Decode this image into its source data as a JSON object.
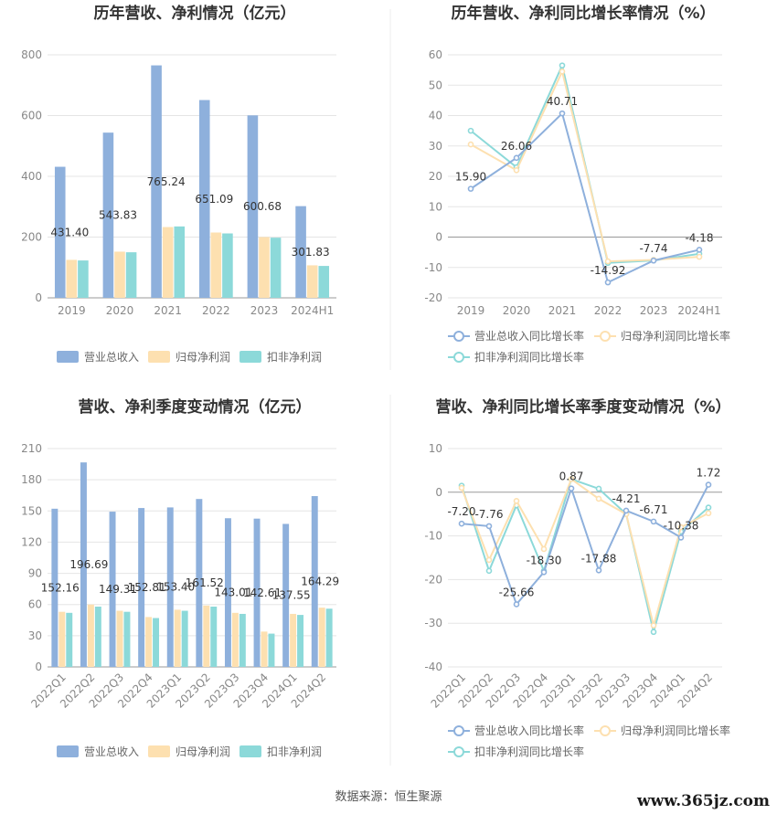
{
  "colors": {
    "revenue": "#8eb0dc",
    "parent": "#fde0b0",
    "deducted": "#8cd9d9"
  },
  "chart_data": [
    {
      "type": "bar",
      "title": "历年营收、净利情况（亿元）",
      "categories": [
        "2019",
        "2020",
        "2021",
        "2022",
        "2023",
        "2024H1"
      ],
      "ylim": [
        0,
        800
      ],
      "yticks": [
        "0",
        "200",
        "400",
        "600",
        "800"
      ],
      "series": [
        {
          "name": "营业总收入",
          "values": [
            431.4,
            543.83,
            765.24,
            651.09,
            600.68,
            301.83
          ],
          "labels": [
            "431.40",
            "543.83",
            "765.24",
            "651.09",
            "600.68",
            "301.83"
          ]
        },
        {
          "name": "归母净利润",
          "values": [
            125,
            152,
            233,
            215,
            200,
            107
          ]
        },
        {
          "name": "扣非净利润",
          "values": [
            123,
            150,
            235,
            212,
            198,
            105
          ]
        }
      ]
    },
    {
      "type": "line",
      "title": "历年营收、净利同比增长率情况（%）",
      "categories": [
        "2019",
        "2020",
        "2021",
        "2022",
        "2023",
        "2024H1"
      ],
      "ylim": [
        -20,
        60
      ],
      "yticks": [
        "-20",
        "-10",
        "0",
        "10",
        "20",
        "30",
        "40",
        "50",
        "60"
      ],
      "series": [
        {
          "name": "营业总收入同比增长率",
          "values": [
            15.9,
            26.06,
            40.71,
            -14.92,
            -7.74,
            -4.18
          ],
          "labels": [
            "15.90",
            "26.06",
            "40.71",
            "-14.92",
            "-7.74",
            "-4.18"
          ]
        },
        {
          "name": "归母净利润同比增长率",
          "values": [
            30.5,
            22.0,
            54.5,
            -8.0,
            -7.5,
            -6.5
          ]
        },
        {
          "name": "扣非净利润同比增长率",
          "values": [
            35.0,
            23.0,
            56.5,
            -8.5,
            -7.7,
            -5.5
          ]
        }
      ]
    },
    {
      "type": "bar",
      "title": "营收、净利季度变动情况（亿元）",
      "categories": [
        "2022Q1",
        "2022Q2",
        "2022Q3",
        "2022Q4",
        "2023Q1",
        "2023Q2",
        "2023Q3",
        "2023Q4",
        "2024Q1",
        "2024Q2"
      ],
      "ylim": [
        0,
        210
      ],
      "yticks": [
        "0",
        "30",
        "60",
        "90",
        "120",
        "150",
        "180",
        "210"
      ],
      "series": [
        {
          "name": "营业总收入",
          "values": [
            152.16,
            196.69,
            149.31,
            152.81,
            153.4,
            161.52,
            143.01,
            142.61,
            137.55,
            164.29
          ],
          "labels": [
            "152.16",
            "196.69",
            "149.31",
            "152.81",
            "153.40",
            "161.52",
            "143.01",
            "142.61",
            "137.55",
            "164.29"
          ]
        },
        {
          "name": "归母净利润",
          "values": [
            53,
            60,
            54,
            48,
            55,
            59,
            52,
            34,
            51,
            57
          ]
        },
        {
          "name": "扣非净利润",
          "values": [
            52,
            58,
            53,
            47,
            54,
            58,
            51,
            32,
            50,
            56
          ]
        }
      ]
    },
    {
      "type": "line",
      "title": "营收、净利同比增长率季度变动情况（%）",
      "categories": [
        "2022Q1",
        "2022Q2",
        "2022Q3",
        "2022Q4",
        "2023Q1",
        "2023Q2",
        "2023Q3",
        "2023Q4",
        "2024Q1",
        "2024Q2"
      ],
      "ylim": [
        -40,
        10
      ],
      "yticks": [
        "-40",
        "-30",
        "-20",
        "-10",
        "0",
        "10"
      ],
      "series": [
        {
          "name": "营业总收入同比增长率",
          "values": [
            -7.2,
            -7.76,
            -25.66,
            -18.3,
            0.87,
            -17.88,
            -4.21,
            -6.71,
            -10.38,
            1.72
          ],
          "labels": [
            "-7.20",
            "-7.76",
            "-25.66",
            "-18.30",
            "0.87",
            "-17.88",
            "-4.21",
            "-6.71",
            "-10.38",
            "1.72"
          ]
        },
        {
          "name": "归母净利润同比增长率",
          "values": [
            1.0,
            -15.5,
            -2.0,
            -13.0,
            3.0,
            -1.5,
            -5.0,
            -30.5,
            -8.0,
            -4.8
          ]
        },
        {
          "name": "扣非净利润同比增长率",
          "values": [
            1.5,
            -18.0,
            -3.0,
            -18.0,
            3.0,
            0.8,
            -5.0,
            -32.0,
            -9.0,
            -3.5
          ]
        }
      ]
    }
  ],
  "source": "数据来源：恒生聚源",
  "watermark": "www.365jz.com"
}
